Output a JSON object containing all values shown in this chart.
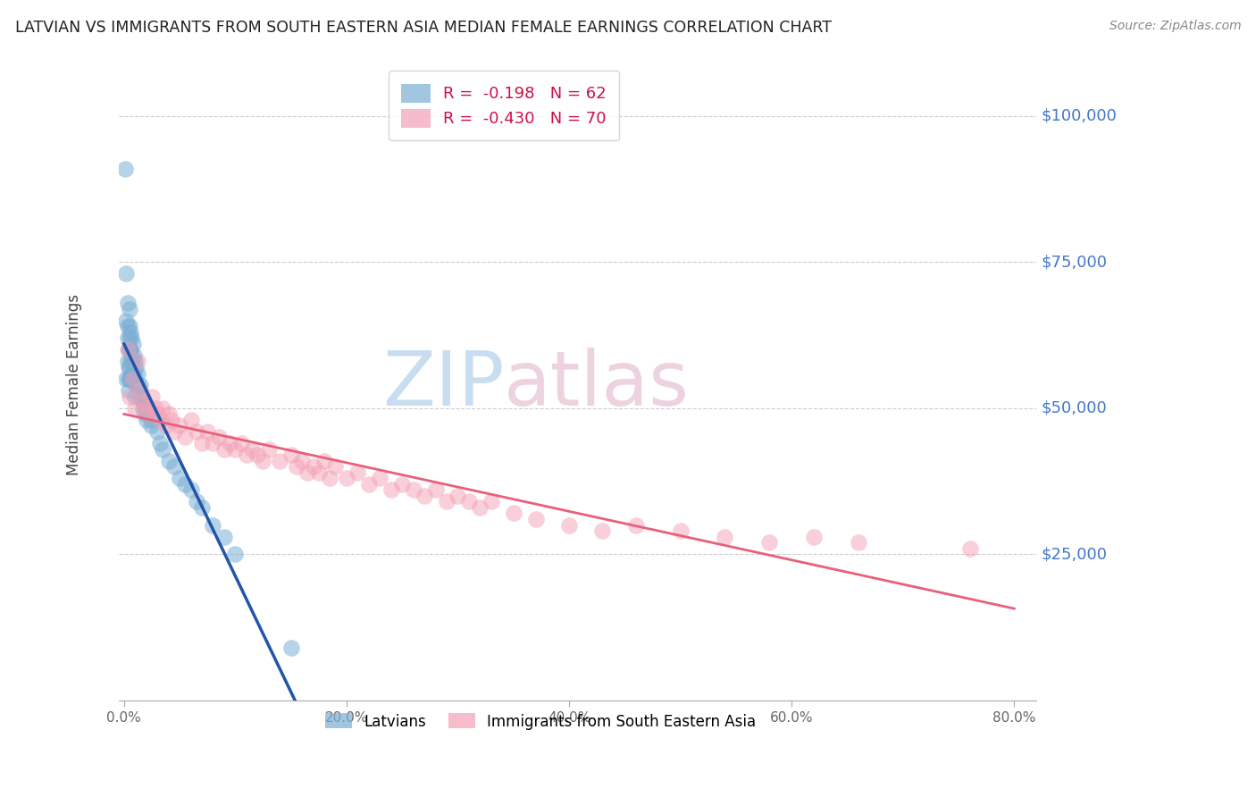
{
  "title": "LATVIAN VS IMMIGRANTS FROM SOUTH EASTERN ASIA MEDIAN FEMALE EARNINGS CORRELATION CHART",
  "source": "Source: ZipAtlas.com",
  "ylabel": "Median Female Earnings",
  "xlabel_ticks": [
    "0.0%",
    "20.0%",
    "40.0%",
    "60.0%",
    "80.0%"
  ],
  "xlabel_vals": [
    0.0,
    0.2,
    0.4,
    0.6,
    0.8
  ],
  "ylabel_ticks": [
    "$25,000",
    "$50,000",
    "$75,000",
    "$100,000"
  ],
  "ylabel_vals": [
    25000,
    50000,
    75000,
    100000
  ],
  "xlim": [
    -0.005,
    0.82
  ],
  "ylim": [
    0,
    108000
  ],
  "legend_latvian_R": "-0.198",
  "legend_latvian_N": "62",
  "legend_sea_R": "-0.430",
  "legend_sea_N": "70",
  "blue_color": "#7BAFD4",
  "pink_color": "#F4A0B5",
  "blue_line_color": "#2255AA",
  "pink_line_color": "#E8607A",
  "background_color": "#FFFFFF",
  "grid_color": "#CCCCCC",
  "latvian_x": [
    0.001,
    0.002,
    0.002,
    0.002,
    0.003,
    0.003,
    0.003,
    0.003,
    0.004,
    0.004,
    0.004,
    0.004,
    0.005,
    0.005,
    0.005,
    0.005,
    0.005,
    0.005,
    0.006,
    0.006,
    0.006,
    0.006,
    0.007,
    0.007,
    0.007,
    0.008,
    0.008,
    0.008,
    0.009,
    0.009,
    0.01,
    0.01,
    0.01,
    0.011,
    0.011,
    0.012,
    0.013,
    0.014,
    0.015,
    0.016,
    0.017,
    0.018,
    0.019,
    0.02,
    0.02,
    0.022,
    0.024,
    0.025,
    0.03,
    0.032,
    0.035,
    0.04,
    0.045,
    0.05,
    0.055,
    0.06,
    0.065,
    0.07,
    0.08,
    0.09,
    0.1,
    0.15
  ],
  "latvian_y": [
    91000,
    73000,
    65000,
    55000,
    68000,
    64000,
    62000,
    58000,
    60000,
    57000,
    55000,
    53000,
    67000,
    64000,
    62000,
    60000,
    57000,
    55000,
    63000,
    60000,
    58000,
    55000,
    62000,
    59000,
    56000,
    61000,
    58000,
    55000,
    59000,
    56000,
    58000,
    55000,
    52000,
    57000,
    54000,
    56000,
    54000,
    52000,
    54000,
    52000,
    50000,
    51000,
    49000,
    50000,
    48000,
    49000,
    47000,
    48000,
    46000,
    44000,
    43000,
    41000,
    40000,
    38000,
    37000,
    36000,
    34000,
    33000,
    30000,
    28000,
    25000,
    9000
  ],
  "sea_x": [
    0.003,
    0.005,
    0.008,
    0.01,
    0.012,
    0.015,
    0.018,
    0.02,
    0.022,
    0.025,
    0.028,
    0.03,
    0.033,
    0.035,
    0.038,
    0.04,
    0.043,
    0.045,
    0.05,
    0.055,
    0.06,
    0.065,
    0.07,
    0.075,
    0.08,
    0.085,
    0.09,
    0.095,
    0.1,
    0.105,
    0.11,
    0.115,
    0.12,
    0.125,
    0.13,
    0.14,
    0.15,
    0.155,
    0.16,
    0.165,
    0.17,
    0.175,
    0.18,
    0.185,
    0.19,
    0.2,
    0.21,
    0.22,
    0.23,
    0.24,
    0.25,
    0.26,
    0.27,
    0.28,
    0.29,
    0.3,
    0.31,
    0.32,
    0.33,
    0.35,
    0.37,
    0.4,
    0.43,
    0.46,
    0.5,
    0.54,
    0.58,
    0.62,
    0.66,
    0.76
  ],
  "sea_y": [
    60000,
    52000,
    55000,
    50000,
    58000,
    53000,
    51000,
    50000,
    49000,
    52000,
    50000,
    49000,
    48000,
    50000,
    47000,
    49000,
    48000,
    46000,
    47000,
    45000,
    48000,
    46000,
    44000,
    46000,
    44000,
    45000,
    43000,
    44000,
    43000,
    44000,
    42000,
    43000,
    42000,
    41000,
    43000,
    41000,
    42000,
    40000,
    41000,
    39000,
    40000,
    39000,
    41000,
    38000,
    40000,
    38000,
    39000,
    37000,
    38000,
    36000,
    37000,
    36000,
    35000,
    36000,
    34000,
    35000,
    34000,
    33000,
    34000,
    32000,
    31000,
    30000,
    29000,
    30000,
    29000,
    28000,
    27000,
    28000,
    27000,
    26000
  ]
}
